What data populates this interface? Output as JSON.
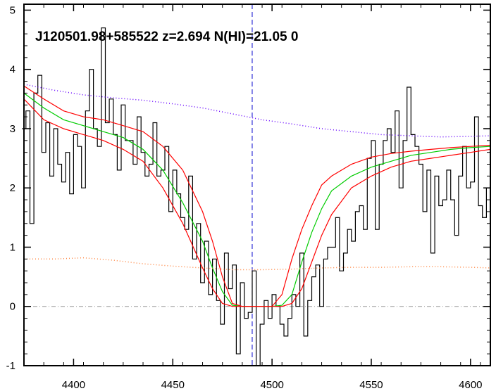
{
  "chart_data": {
    "type": "line",
    "title": "J120501.98+585522 z=2.694 N(HI)=21.05 0",
    "xlabel": "",
    "ylabel": "",
    "xlim": [
      4375,
      4610
    ],
    "ylim": [
      -1,
      5.1
    ],
    "x_ticks": [
      4400,
      4450,
      4500,
      4550,
      4600
    ],
    "x_tick_labels": [
      "4400",
      "4450",
      "4500",
      "4550",
      "4600"
    ],
    "y_ticks": [
      -1,
      0,
      1,
      2,
      3,
      4,
      5
    ],
    "y_tick_labels": [
      "-1",
      "0",
      "1",
      "2",
      "3",
      "4",
      "5"
    ],
    "grid": false,
    "vertical_marker": {
      "x": 4490,
      "color": "#0000cc",
      "style": "dashed"
    },
    "zero_line": {
      "y": 0,
      "color": "#999999",
      "style": "dash-dot"
    },
    "series": [
      {
        "style": "step",
        "color": "#000000",
        "x": [
          4375,
          4377,
          4379,
          4381,
          4383,
          4385,
          4387,
          4389,
          4391,
          4393,
          4395,
          4397,
          4399,
          4401,
          4403,
          4405,
          4407,
          4409,
          4411,
          4413,
          4415,
          4417,
          4419,
          4421,
          4423,
          4425,
          4427,
          4429,
          4431,
          4433,
          4435,
          4437,
          4439,
          4441,
          4443,
          4445,
          4447,
          4449,
          4451,
          4453,
          4455,
          4457,
          4459,
          4461,
          4463,
          4465,
          4467,
          4469,
          4471,
          4473,
          4475,
          4477,
          4479,
          4481,
          4483,
          4485,
          4487,
          4489,
          4491,
          4493,
          4495,
          4497,
          4499,
          4501,
          4503,
          4505,
          4507,
          4509,
          4511,
          4513,
          4515,
          4517,
          4519,
          4521,
          4523,
          4525,
          4527,
          4529,
          4531,
          4533,
          4535,
          4537,
          4539,
          4541,
          4543,
          4545,
          4547,
          4549,
          4551,
          4553,
          4555,
          4557,
          4559,
          4561,
          4563,
          4565,
          4567,
          4569,
          4571,
          4573,
          4575,
          4577,
          4579,
          4581,
          4583,
          4585,
          4587,
          4589,
          4591,
          4593,
          4595,
          4597,
          4599,
          4601,
          4603,
          4605,
          4607,
          4609
        ],
        "y": [
          3.0,
          3.3,
          1.4,
          3.6,
          3.9,
          2.6,
          3.1,
          2.2,
          3.0,
          2.4,
          2.1,
          2.6,
          1.9,
          2.9,
          2.7,
          2.0,
          3.3,
          4.0,
          3.0,
          2.7,
          4.7,
          3.1,
          3.5,
          2.9,
          2.3,
          3.4,
          2.8,
          2.8,
          2.4,
          3.2,
          2.6,
          2.2,
          2.4,
          3.1,
          2.2,
          2.3,
          2.7,
          1.6,
          2.3,
          1.9,
          1.5,
          1.3,
          2.2,
          0.8,
          1.4,
          0.4,
          1.1,
          0.2,
          0.8,
          0.1,
          -0.3,
          0.9,
          0.3,
          0.7,
          -0.8,
          0.4,
          -0.2,
          -0.1,
          0.6,
          -1.0,
          -0.3,
          0.1,
          -0.2,
          0.2,
          0.0,
          -0.3,
          -0.5,
          -0.2,
          0.2,
          0.0,
          0.9,
          -0.5,
          0.1,
          0.5,
          0.7,
          0.0,
          0.8,
          1.0,
          1.0,
          1.5,
          0.6,
          0.9,
          1.3,
          1.1,
          1.6,
          1.7,
          1.3,
          2.5,
          2.8,
          1.3,
          2.4,
          2.8,
          3.0,
          2.6,
          3.3,
          2.0,
          2.8,
          3.7,
          2.9,
          2.7,
          2.4,
          1.6,
          2.3,
          0.9,
          2.2,
          1.7,
          1.8,
          2.3,
          1.8,
          1.2,
          2.2,
          2.7,
          2.0,
          2.1,
          3.2,
          1.7,
          1.5,
          2.0
        ]
      },
      {
        "style": "line",
        "color": "#00cc00",
        "x": [
          4375,
          4385,
          4395,
          4405,
          4415,
          4425,
          4435,
          4445,
          4455,
          4465,
          4470,
          4475,
          4480,
          4485,
          4490,
          4495,
          4500,
          4505,
          4510,
          4515,
          4520,
          4525,
          4530,
          4540,
          4550,
          4560,
          4570,
          4580,
          4590,
          4600,
          4610
        ],
        "y": [
          3.6,
          3.35,
          3.15,
          3.05,
          2.95,
          2.85,
          2.65,
          2.3,
          1.75,
          1.1,
          0.65,
          0.25,
          0.02,
          0.0,
          0.0,
          0.0,
          0.0,
          0.02,
          0.2,
          0.75,
          1.25,
          1.65,
          1.95,
          2.2,
          2.35,
          2.45,
          2.55,
          2.6,
          2.65,
          2.68,
          2.7
        ]
      },
      {
        "style": "line",
        "color": "#ff0000",
        "x": [
          4375,
          4385,
          4395,
          4405,
          4415,
          4425,
          4435,
          4445,
          4455,
          4465,
          4470,
          4475,
          4480,
          4485,
          4490,
          4495,
          4500,
          4505,
          4510,
          4515,
          4520,
          4525,
          4530,
          4540,
          4550,
          4560,
          4570,
          4580,
          4590,
          4600,
          4610
        ],
        "y": [
          3.72,
          3.5,
          3.3,
          3.2,
          3.15,
          3.05,
          2.95,
          2.7,
          2.3,
          1.6,
          1.1,
          0.5,
          0.05,
          0.0,
          0.0,
          0.0,
          0.0,
          0.2,
          0.8,
          1.3,
          1.7,
          2.05,
          2.2,
          2.4,
          2.52,
          2.58,
          2.62,
          2.65,
          2.68,
          2.7,
          2.72
        ]
      },
      {
        "style": "line",
        "color": "#ff0000",
        "x": [
          4375,
          4385,
          4395,
          4405,
          4415,
          4425,
          4435,
          4445,
          4455,
          4465,
          4470,
          4475,
          4480,
          4485,
          4490,
          4495,
          4500,
          4505,
          4510,
          4515,
          4520,
          4525,
          4530,
          4540,
          4550,
          4560,
          4570,
          4580,
          4590,
          4600,
          4610
        ],
        "y": [
          3.5,
          3.15,
          3.0,
          2.9,
          2.8,
          2.65,
          2.45,
          2.0,
          1.4,
          0.65,
          0.3,
          0.05,
          0.0,
          0.0,
          0.0,
          0.0,
          0.0,
          0.0,
          0.05,
          0.3,
          0.75,
          1.2,
          1.55,
          2.0,
          2.2,
          2.35,
          2.45,
          2.5,
          2.55,
          2.6,
          2.65
        ]
      },
      {
        "style": "dotted",
        "color": "#6600ff",
        "x": [
          4375,
          4390,
          4405,
          4420,
          4435,
          4450,
          4465,
          4480,
          4495,
          4510,
          4525,
          4540,
          4555,
          4570,
          4585,
          4600,
          4610
        ],
        "y": [
          3.75,
          3.65,
          3.57,
          3.52,
          3.48,
          3.42,
          3.35,
          3.25,
          3.15,
          3.08,
          3.0,
          2.95,
          2.9,
          2.88,
          2.86,
          2.87,
          2.88
        ]
      },
      {
        "style": "dotted",
        "color": "#ff8844",
        "x": [
          4375,
          4390,
          4405,
          4420,
          4435,
          4450,
          4465,
          4480,
          4495,
          4510,
          4525,
          4540,
          4555,
          4570,
          4585,
          4600,
          4610
        ],
        "y": [
          0.8,
          0.8,
          0.82,
          0.78,
          0.72,
          0.68,
          0.65,
          0.62,
          0.62,
          0.63,
          0.65,
          0.66,
          0.66,
          0.67,
          0.67,
          0.66,
          0.65
        ]
      }
    ]
  }
}
